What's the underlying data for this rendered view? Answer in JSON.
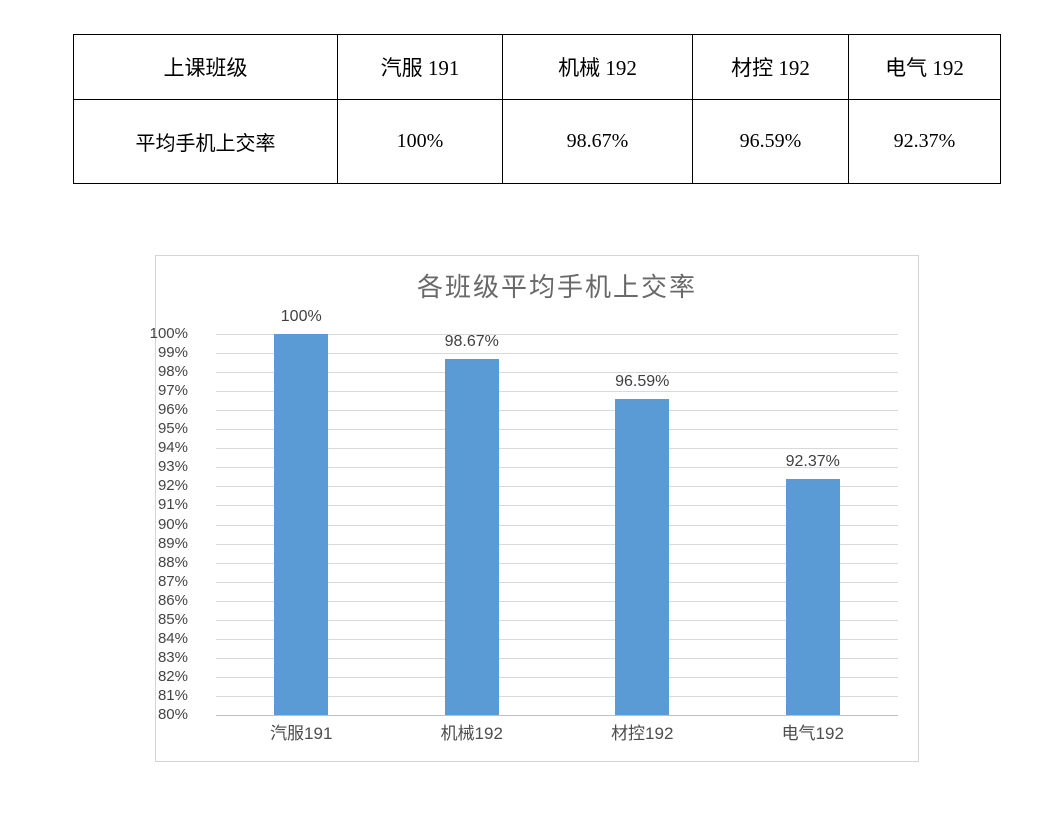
{
  "table": {
    "rows": [
      {
        "cells": [
          "上课班级",
          "汽服 191",
          "机械 192",
          "材控 192",
          "电气 192"
        ]
      },
      {
        "cells": [
          "平均手机上交率",
          "100%",
          "98.67%",
          "96.59%",
          "92.37%"
        ]
      }
    ]
  },
  "chart_data": {
    "type": "bar",
    "title": "各班级平均手机上交率",
    "categories": [
      "汽服191",
      "机械192",
      "材控192",
      "电气192"
    ],
    "values": [
      100,
      98.67,
      96.59,
      92.37
    ],
    "data_labels": [
      "100%",
      "98.67%",
      "96.59%",
      "92.37%"
    ],
    "xlabel": "",
    "ylabel": "",
    "ylim": [
      80,
      100
    ],
    "ytick_step": 1,
    "ytick_suffix": "%",
    "grid": true,
    "legend": "none",
    "colors": {
      "bar": "#5B9BD5",
      "gridline": "#D9D9D9",
      "axis_line": "#BFBFBF",
      "tick_text": "#444444",
      "data_label_text": "#404040",
      "category_text": "#4D4D4D",
      "title_text": "#696969",
      "chart_border": "#D4D4D4"
    }
  }
}
